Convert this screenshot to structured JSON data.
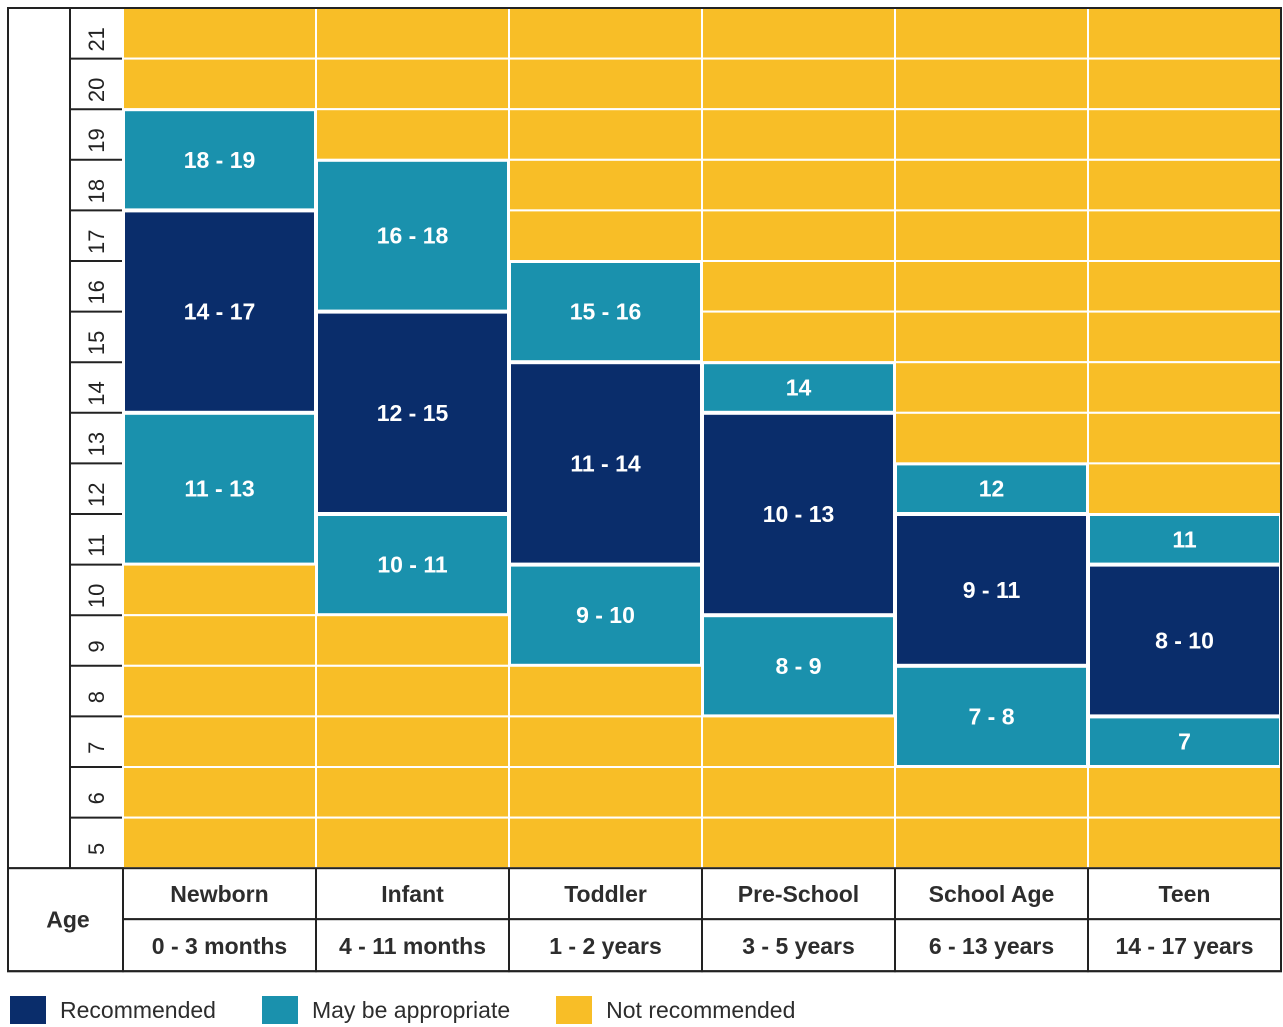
{
  "chart_data": {
    "type": "heatmap",
    "y_ticks": [
      "5",
      "6",
      "7",
      "8",
      "9",
      "10",
      "11",
      "12",
      "13",
      "14",
      "15",
      "16",
      "17",
      "18",
      "19",
      "20",
      "21"
    ],
    "ylim": [
      5,
      21
    ],
    "age_label": "Age",
    "categories": [
      {
        "name": "Newborn",
        "range": "0 - 3 months",
        "blocks": [
          {
            "label": "11 - 13",
            "from": 11,
            "to": 13,
            "level": "may"
          },
          {
            "label": "14 - 17",
            "from": 14,
            "to": 17,
            "level": "rec"
          },
          {
            "label": "18 - 19",
            "from": 18,
            "to": 19,
            "level": "may"
          }
        ]
      },
      {
        "name": "Infant",
        "range": "4 - 11 months",
        "blocks": [
          {
            "label": "10 - 11",
            "from": 10,
            "to": 11,
            "level": "may"
          },
          {
            "label": "12 - 15",
            "from": 12,
            "to": 15,
            "level": "rec"
          },
          {
            "label": "16 - 18",
            "from": 16,
            "to": 18,
            "level": "may"
          }
        ]
      },
      {
        "name": "Toddler",
        "range": "1 - 2 years",
        "blocks": [
          {
            "label": "9 - 10",
            "from": 9,
            "to": 10,
            "level": "may"
          },
          {
            "label": "11 - 14",
            "from": 11,
            "to": 14,
            "level": "rec"
          },
          {
            "label": "15 - 16",
            "from": 15,
            "to": 16,
            "level": "may"
          }
        ]
      },
      {
        "name": "Pre-School",
        "range": "3 - 5 years",
        "blocks": [
          {
            "label": "8 - 9",
            "from": 8,
            "to": 9,
            "level": "may"
          },
          {
            "label": "10 - 13",
            "from": 10,
            "to": 13,
            "level": "rec"
          },
          {
            "label": "14",
            "from": 14,
            "to": 14,
            "level": "may"
          }
        ]
      },
      {
        "name": "School Age",
        "range": "6 - 13 years",
        "blocks": [
          {
            "label": "7 - 8",
            "from": 7,
            "to": 8,
            "level": "may"
          },
          {
            "label": "9 - 11",
            "from": 9,
            "to": 11,
            "level": "rec"
          },
          {
            "label": "12",
            "from": 12,
            "to": 12,
            "level": "may"
          }
        ]
      },
      {
        "name": "Teen",
        "range": "14 - 17 years",
        "blocks": [
          {
            "label": "7",
            "from": 7,
            "to": 7,
            "level": "may"
          },
          {
            "label": "8 - 10",
            "from": 8,
            "to": 10,
            "level": "rec"
          },
          {
            "label": "11",
            "from": 11,
            "to": 11,
            "level": "may"
          }
        ]
      }
    ],
    "legend": [
      {
        "key": "rec",
        "label": "Recommended",
        "color": "#0a2d6b"
      },
      {
        "key": "may",
        "label": "May be appropriate",
        "color": "#1a91ad"
      },
      {
        "key": "not",
        "label": "Not recommended",
        "color": "#f8be27"
      }
    ]
  }
}
